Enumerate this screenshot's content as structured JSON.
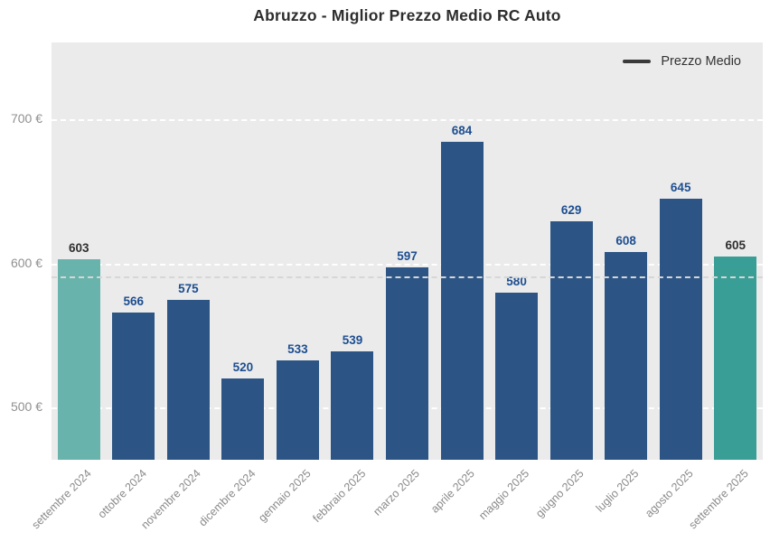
{
  "title": "Abruzzo - Miglior Prezzo Medio RC Auto",
  "legend": {
    "label": "Prezzo Medio",
    "line_color": "#3a3a3a"
  },
  "chart_data": {
    "type": "bar",
    "title": "Abruzzo - Miglior Prezzo Medio RC Auto",
    "categories": [
      "settembre 2024",
      "ottobre 2024",
      "novembre 2024",
      "dicembre 2024",
      "gennaio 2025",
      "febbraio 2025",
      "marzo 2025",
      "aprile 2025",
      "maggio 2025",
      "giugno 2025",
      "luglio 2025",
      "agosto 2025",
      "settembre 2025"
    ],
    "series": [
      {
        "name": "Prezzo Medio",
        "values": [
          603,
          566,
          575,
          520,
          533,
          539,
          597,
          684,
          580,
          629,
          608,
          645,
          605
        ]
      }
    ],
    "xlabel": "",
    "ylabel": "",
    "ylim": [
      464,
      753
    ],
    "yticks": [
      {
        "value": 500,
        "label": "500 €"
      },
      {
        "value": 600,
        "label": "600 €"
      },
      {
        "value": 700,
        "label": "700 €"
      }
    ],
    "grid": true,
    "gridline_style": "dashed-white",
    "legend_position": "top-right",
    "average_reference_line": {
      "style": "dashed",
      "color": "#d6d6d6",
      "computed_from": "mean of values"
    },
    "colors": {
      "bar_default": "#2c5585",
      "bar_first_highlight": "#68b4ac",
      "bar_last_highlight": "#399e96",
      "value_label_default": "#1d4e90",
      "value_label_highlight": "#2f2f2f",
      "plot_background": "#ebebeb",
      "page_background": "#ffffff",
      "axis_tick_color": "#8a8a8a"
    },
    "highlighted_bars": [
      {
        "index": 0,
        "color": "#68b4ac",
        "label_color": "#2f2f2f"
      },
      {
        "index": 12,
        "color": "#399e96",
        "label_color": "#2f2f2f"
      }
    ]
  }
}
